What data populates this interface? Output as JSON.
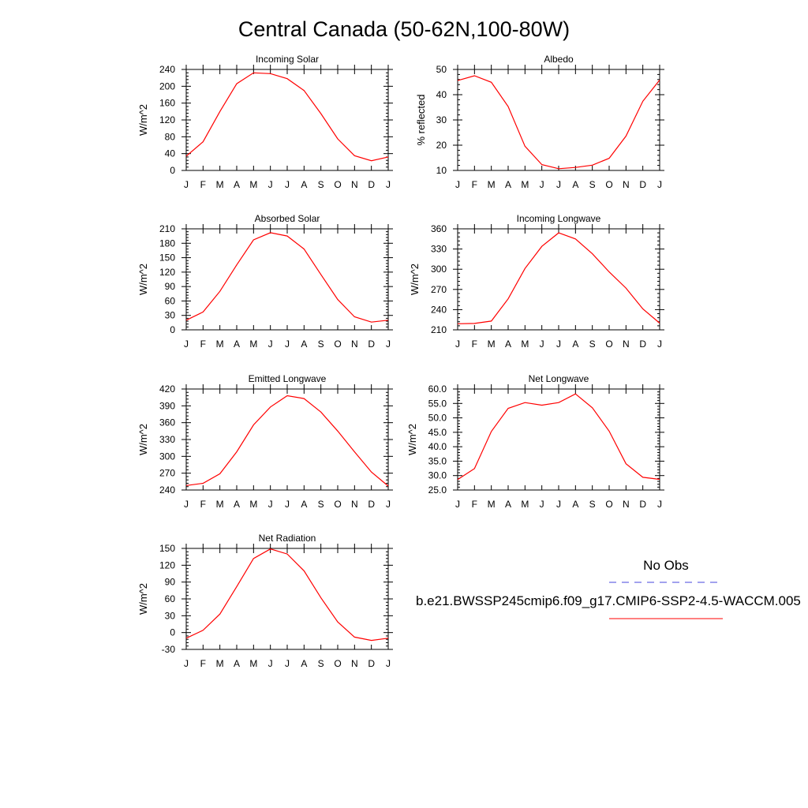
{
  "main_title": "Central Canada (50-62N,100-80W)",
  "months": [
    "J",
    "F",
    "M",
    "A",
    "M",
    "J",
    "J",
    "A",
    "S",
    "O",
    "N",
    "D",
    "J"
  ],
  "chart_data": [
    {
      "type": "line",
      "title": "Incoming Solar",
      "ylabel": "W/m^2",
      "ylim": [
        0,
        240
      ],
      "yticks": [
        "0",
        "40",
        "80",
        "120",
        "160",
        "200",
        "240"
      ],
      "series": [
        {
          "color": "#ff0000",
          "values": [
            34,
            68,
            140,
            206,
            232,
            230,
            218,
            190,
            135,
            75,
            35,
            23,
            32
          ]
        }
      ]
    },
    {
      "type": "line",
      "title": "Albedo",
      "ylabel": "% reflected",
      "ylim": [
        10,
        50
      ],
      "yticks": [
        "10",
        "20",
        "30",
        "40",
        "50"
      ],
      "series": [
        {
          "color": "#ff0000",
          "values": [
            45.6,
            47.5,
            44.9,
            35.3,
            19.6,
            12.3,
            10.7,
            11.2,
            12.1,
            14.8,
            23.6,
            37.4,
            45.8
          ]
        }
      ]
    },
    {
      "type": "line",
      "title": "Absorbed Solar",
      "ylabel": "W/m^2",
      "ylim": [
        0,
        210
      ],
      "yticks": [
        "0",
        "30",
        "60",
        "90",
        "120",
        "150",
        "180",
        "210"
      ],
      "series": [
        {
          "color": "#ff0000",
          "values": [
            20,
            37,
            80,
            135,
            187,
            202,
            195,
            168,
            115,
            63,
            27,
            16,
            20
          ]
        }
      ]
    },
    {
      "type": "line",
      "title": "Incoming Longwave",
      "ylabel": "W/m^2",
      "ylim": [
        210,
        360
      ],
      "yticks": [
        "210",
        "240",
        "270",
        "300",
        "330",
        "360"
      ],
      "series": [
        {
          "color": "#ff0000",
          "values": [
            219,
            219.5,
            223,
            256,
            301,
            334,
            354,
            345,
            323,
            296,
            272,
            241,
            220
          ]
        }
      ]
    },
    {
      "type": "line",
      "title": "Emitted Longwave",
      "ylabel": "W/m^2",
      "ylim": [
        240,
        420
      ],
      "yticks": [
        "240",
        "270",
        "300",
        "330",
        "360",
        "390",
        "420"
      ],
      "series": [
        {
          "color": "#ff0000",
          "values": [
            248,
            252,
            269,
            308,
            356,
            388,
            408,
            403,
            379,
            345,
            308,
            272,
            247
          ]
        }
      ]
    },
    {
      "type": "line",
      "title": "Net Longwave",
      "ylabel": "W/m^2",
      "ylim": [
        25,
        60
      ],
      "yticks": [
        "25.0",
        "30.0",
        "35.0",
        "40.0",
        "45.0",
        "50.0",
        "55.0",
        "60.0"
      ],
      "series": [
        {
          "color": "#ff0000",
          "values": [
            28.6,
            32.4,
            45.3,
            53.3,
            55.3,
            54.4,
            55.3,
            58.3,
            53.5,
            45.4,
            34.1,
            29.4,
            28.7
          ]
        }
      ]
    },
    {
      "type": "line",
      "title": "Net Radiation",
      "ylabel": "W/m^2",
      "ylim": [
        -30,
        150
      ],
      "yticks": [
        "-30",
        "0",
        "30",
        "60",
        "90",
        "120",
        "150"
      ],
      "series": [
        {
          "color": "#ff0000",
          "values": [
            -10,
            4,
            33,
            82,
            132,
            149,
            140,
            110,
            62,
            19,
            -8,
            -14,
            -10
          ]
        }
      ]
    }
  ],
  "legend": {
    "obs_label": "No Obs",
    "obs_color": "#4444dd",
    "model_label": "b.e21.BWSSP245cmip6.f09_g17.CMIP6-SSP2-4.5-WACCM.005",
    "model_color": "#ff0000"
  }
}
